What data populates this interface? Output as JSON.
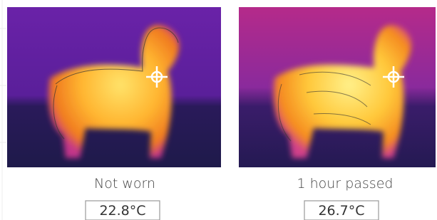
{
  "panels": [
    {
      "caption": "Not worn",
      "temperature": "22.8°C"
    },
    {
      "caption": "1 hour passed",
      "temperature": "26.7°C"
    }
  ]
}
